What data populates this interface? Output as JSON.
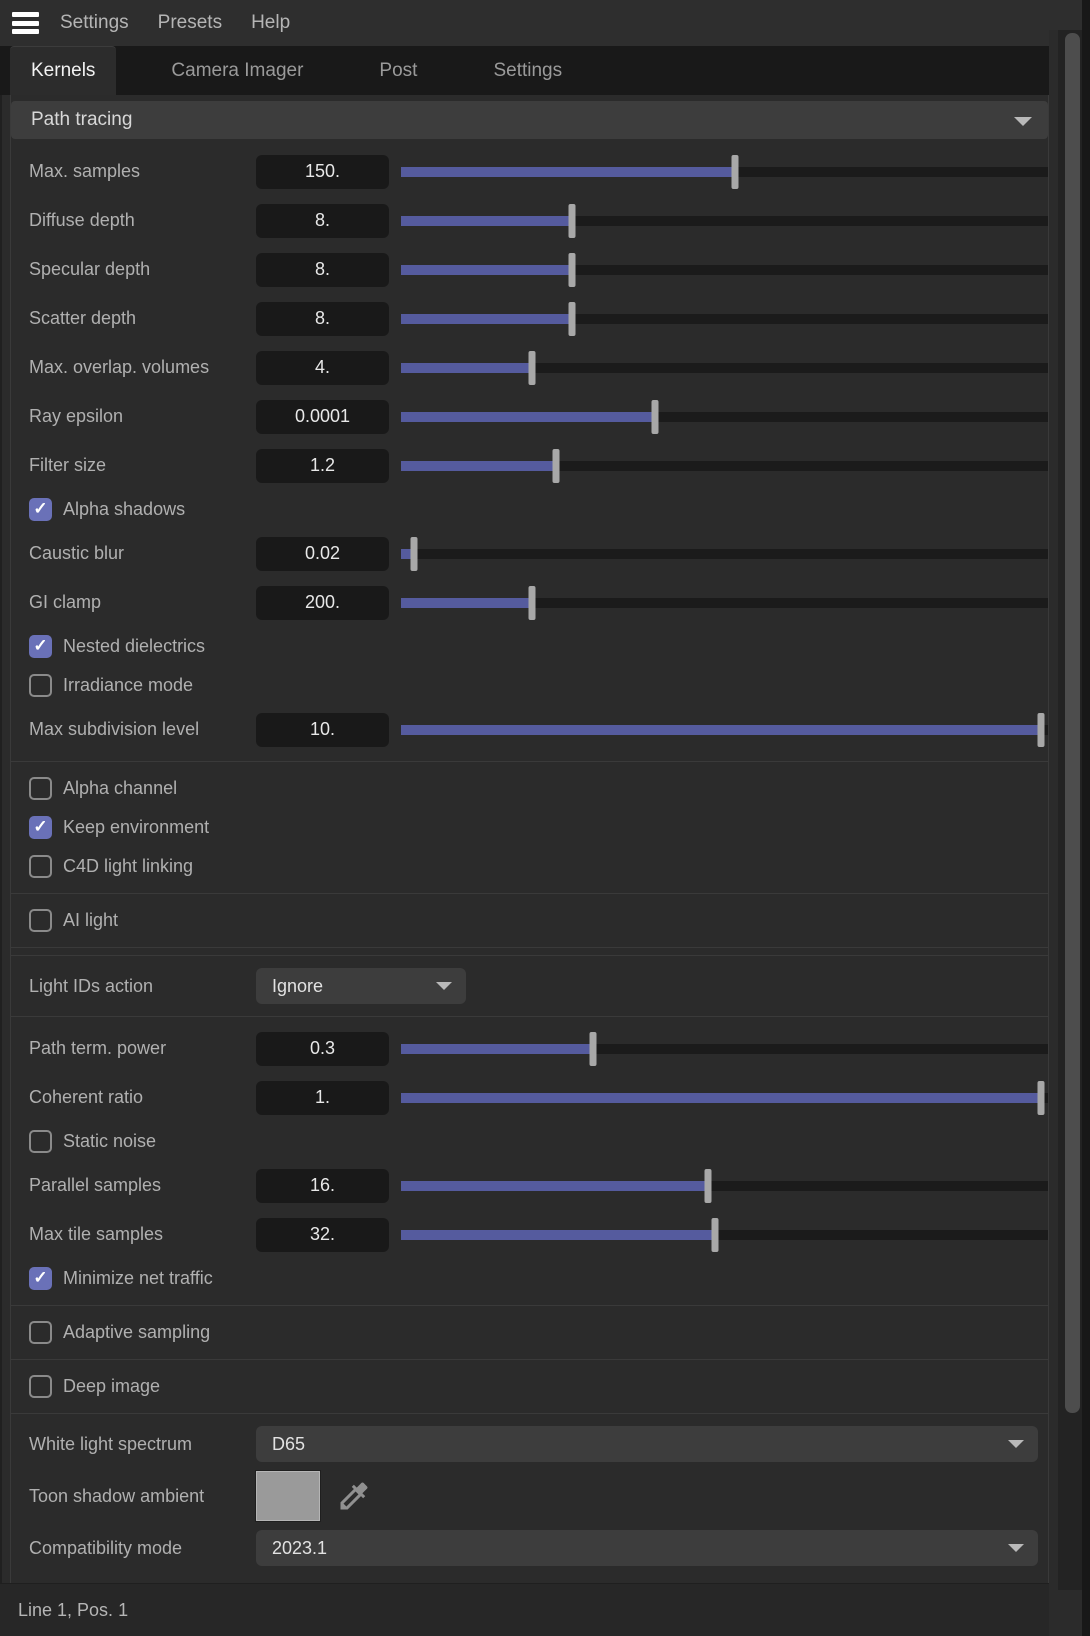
{
  "menu_bar": {
    "items": [
      "Settings",
      "Presets",
      "Help"
    ]
  },
  "tabs": {
    "active": "Kernels",
    "items": [
      "Kernels",
      "Camera Imager",
      "Post",
      "Settings"
    ]
  },
  "kernel_type": {
    "label": "Path tracing"
  },
  "rows": [
    {
      "type": "slider",
      "label": "Max. samples",
      "value": "150.",
      "fill_pct": 51.6
    },
    {
      "type": "slider",
      "label": "Diffuse depth",
      "value": "8.",
      "fill_pct": 26.5
    },
    {
      "type": "slider",
      "label": "Specular depth",
      "value": "8.",
      "fill_pct": 26.5
    },
    {
      "type": "slider",
      "label": "Scatter depth",
      "value": "8.",
      "fill_pct": 26.5
    },
    {
      "type": "slider",
      "label": "Max. overlap. volumes",
      "value": "4.",
      "fill_pct": 20.3
    },
    {
      "type": "slider",
      "label": "Ray epsilon",
      "value": "0.0001",
      "fill_pct": 39.3
    },
    {
      "type": "slider",
      "label": "Filter size",
      "value": "1.2",
      "fill_pct": 23.9
    },
    {
      "type": "checkbox",
      "label": "Alpha shadows",
      "checked": true
    },
    {
      "type": "slider",
      "label": "Caustic blur",
      "value": "0.02",
      "fill_pct": 2.0
    },
    {
      "type": "slider",
      "label": "GI clamp",
      "value": "200.",
      "fill_pct": 20.2
    },
    {
      "type": "checkbox",
      "label": "Nested dielectrics",
      "checked": true
    },
    {
      "type": "checkbox",
      "label": "Irradiance mode",
      "checked": false
    },
    {
      "type": "slider",
      "label": "Max subdivision level",
      "value": "10.",
      "fill_pct": 98.9
    },
    {
      "type": "separator"
    },
    {
      "type": "checkbox",
      "label": "Alpha channel",
      "checked": false
    },
    {
      "type": "checkbox",
      "label": "Keep environment",
      "checked": true
    },
    {
      "type": "checkbox",
      "label": "C4D light linking",
      "checked": false
    },
    {
      "type": "separator"
    },
    {
      "type": "checkbox",
      "label": "AI light",
      "checked": false
    },
    {
      "type": "separator"
    },
    {
      "type": "separator"
    },
    {
      "type": "select_small",
      "label": "Light IDs action",
      "value": "Ignore"
    },
    {
      "type": "separator"
    },
    {
      "type": "slider",
      "label": "Path term. power",
      "value": "0.3",
      "fill_pct": 29.7
    },
    {
      "type": "slider",
      "label": "Coherent ratio",
      "value": "1.",
      "fill_pct": 98.9
    },
    {
      "type": "checkbox",
      "label": "Static noise",
      "checked": false
    },
    {
      "type": "slider",
      "label": "Parallel samples",
      "value": "16.",
      "fill_pct": 47.5
    },
    {
      "type": "slider",
      "label": "Max tile samples",
      "value": "32.",
      "fill_pct": 48.5
    },
    {
      "type": "checkbox",
      "label": "Minimize net traffic",
      "checked": true
    },
    {
      "type": "separator"
    },
    {
      "type": "checkbox",
      "label": "Adaptive sampling",
      "checked": false
    },
    {
      "type": "separator"
    },
    {
      "type": "checkbox",
      "label": "Deep image",
      "checked": false
    },
    {
      "type": "separator"
    },
    {
      "type": "select_wide",
      "label": "White light spectrum",
      "value": "D65"
    },
    {
      "type": "color",
      "label": "Toon shadow ambient",
      "swatch": "#9a9a9a",
      "icon": "eyedropper-icon"
    },
    {
      "type": "select_wide",
      "label": "Compatibility mode",
      "value": "2023.1"
    }
  ],
  "status_bar": {
    "text": "Line 1, Pos. 1"
  },
  "colors": {
    "accent": "#6a71b8",
    "slider_fill": "#555b9e",
    "panel_bg": "#2b2b2b",
    "tabbar_bg": "#191919",
    "control_bg": "#3d3d3d",
    "valuebox_bg": "#191919",
    "swatch": "#9a9a9a"
  }
}
